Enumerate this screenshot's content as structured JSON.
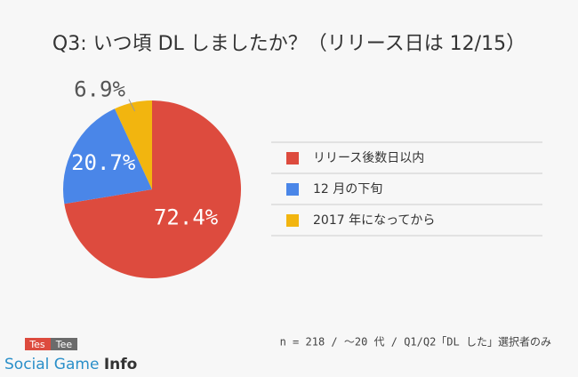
{
  "chart_data": {
    "type": "pie",
    "title": "Q3: いつ頃 DL しましたか？（リリース日は 12/15）",
    "categories": [
      "リリース後数日以内",
      "12 月の下旬",
      "2017 年になってから"
    ],
    "values": [
      72.4,
      20.7,
      6.9
    ],
    "value_labels": [
      "72.4%",
      "20.7%",
      "6.9%"
    ],
    "colors": [
      "#dd4b3e",
      "#4a86e8",
      "#f2b50f"
    ],
    "note": "n = 218 / ～20 代 / Q1/Q2「DL した」選択者のみ"
  },
  "brand": {
    "logo": [
      "Tes",
      "Tee"
    ],
    "site": "Social Game ",
    "site_bold": "Info"
  }
}
